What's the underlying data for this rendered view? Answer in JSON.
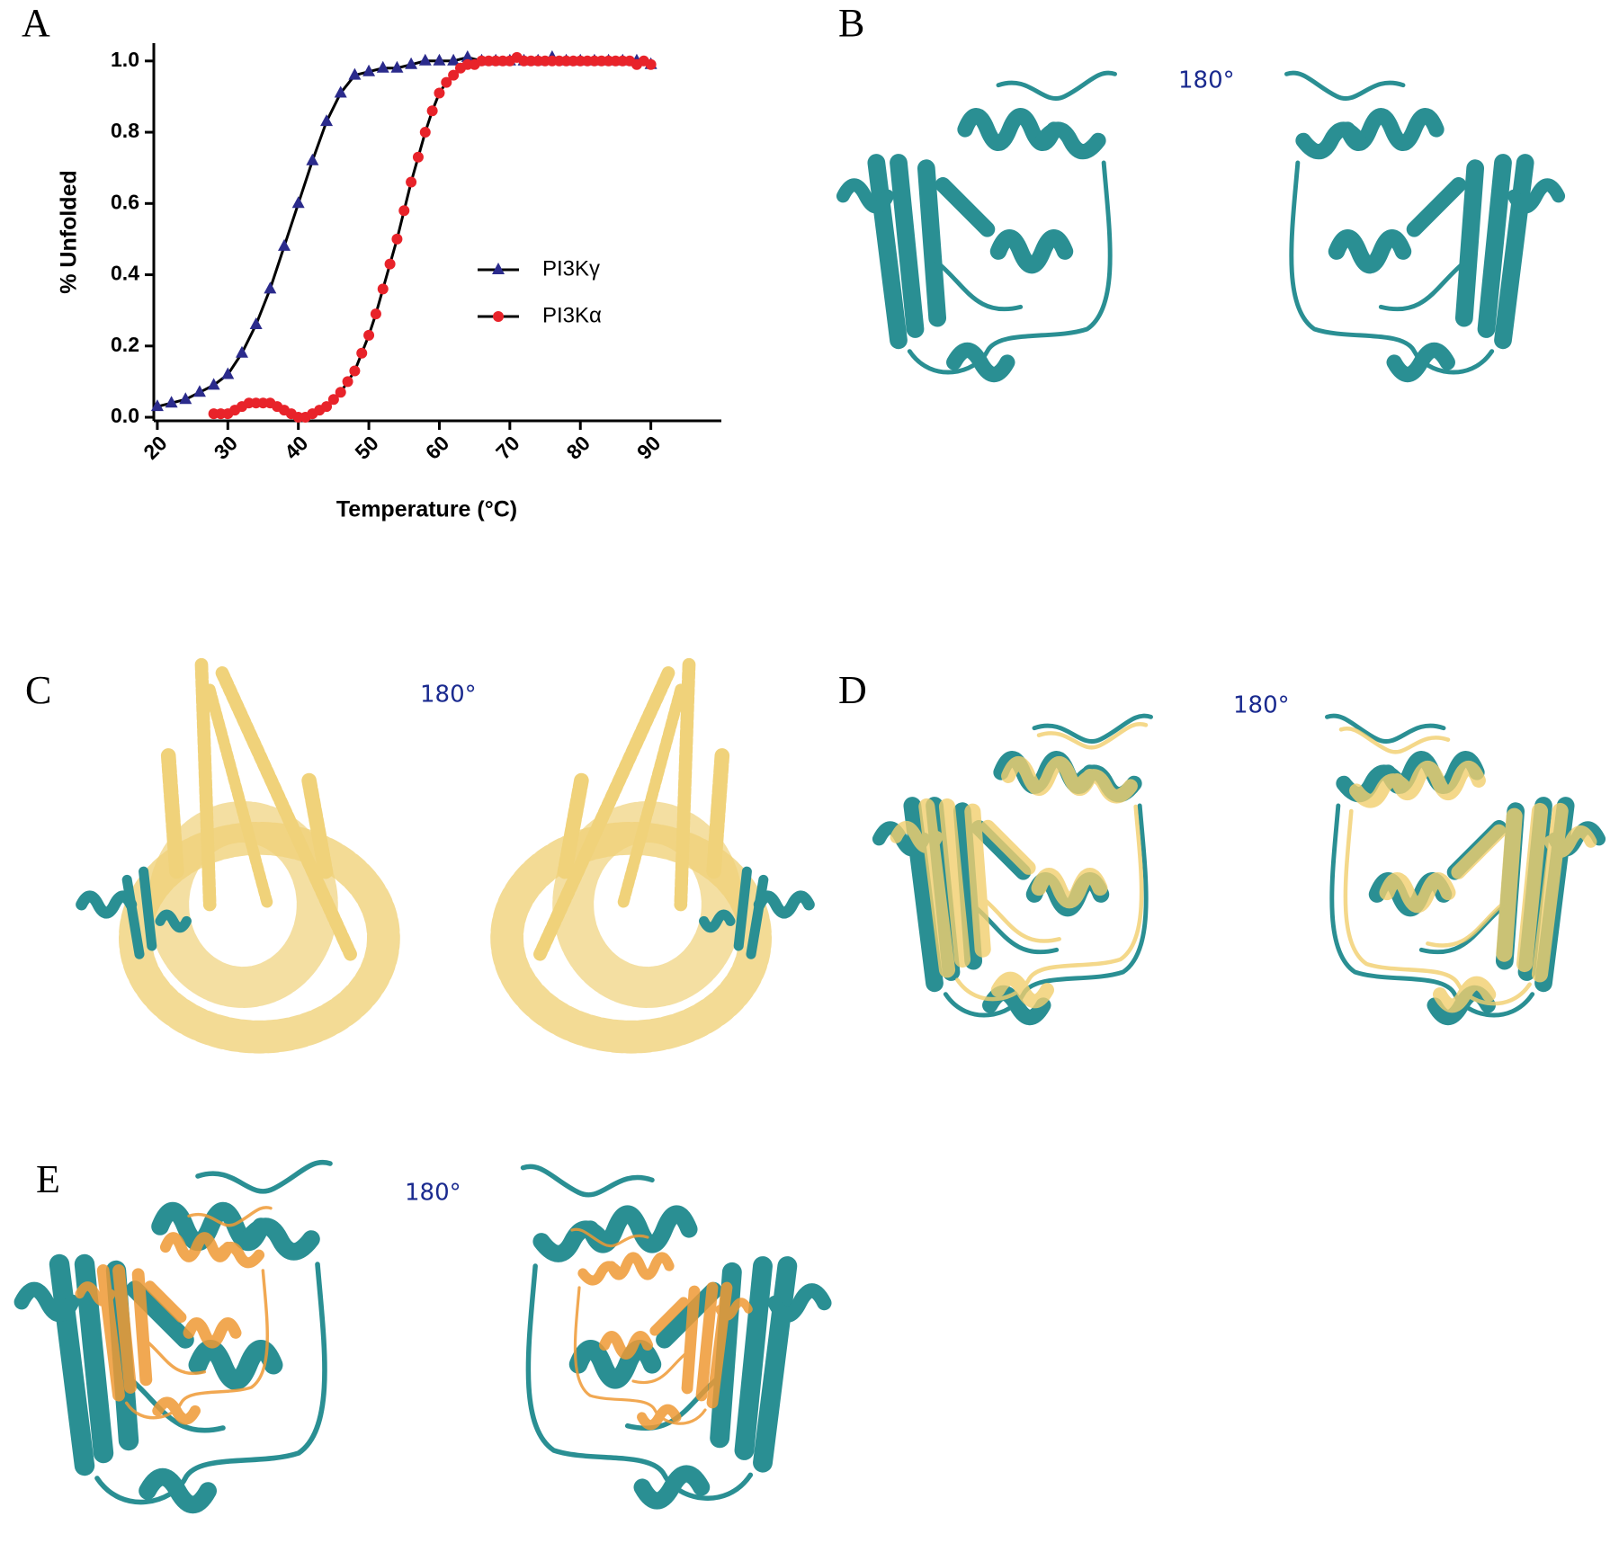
{
  "chart_data": {
    "type": "line",
    "x_label": "Temperature (°C)",
    "y_label": "% Unfolded",
    "xlim": [
      19.5,
      100
    ],
    "xticks": [
      20,
      30,
      40,
      50,
      60,
      70,
      80,
      90
    ],
    "ylim": [
      -0.01,
      1.05
    ],
    "yticks": [
      {
        "value": 0,
        "label": "0.0"
      },
      0.2,
      0.4,
      0.6,
      0.8,
      {
        "value": 1,
        "label": "1.0"
      }
    ],
    "legend": "right-center",
    "line_color": "#000000",
    "series": [
      {
        "name": "PI3Kγ",
        "color": "#2b2b8c",
        "marker": "triangle",
        "x": [
          20,
          22,
          24,
          26,
          28,
          30,
          32,
          34,
          36,
          38,
          40,
          42,
          44,
          46,
          48,
          50,
          52,
          54,
          56,
          58,
          60,
          62,
          64,
          66,
          68,
          70,
          72,
          74,
          76,
          78,
          80,
          82,
          84,
          86,
          88,
          90
        ],
        "values": [
          0.03,
          0.04,
          0.05,
          0.07,
          0.09,
          0.12,
          0.18,
          0.26,
          0.36,
          0.48,
          0.6,
          0.72,
          0.83,
          0.91,
          0.96,
          0.97,
          0.98,
          0.98,
          0.99,
          1.0,
          1.0,
          1.0,
          1.01,
          1.0,
          1.0,
          1.0,
          1.0,
          1.0,
          1.01,
          1.0,
          1.0,
          1.0,
          1.0,
          1.0,
          1.0,
          0.99
        ]
      },
      {
        "name": "PI3Kα",
        "color": "#e8232a",
        "marker": "circle",
        "x": [
          28,
          29,
          30,
          31,
          32,
          33,
          34,
          35,
          36,
          37,
          38,
          39,
          40,
          41,
          42,
          43,
          44,
          45,
          46,
          47,
          48,
          49,
          50,
          51,
          52,
          53,
          54,
          55,
          56,
          57,
          58,
          59,
          60,
          61,
          62,
          63,
          64,
          65,
          66,
          67,
          68,
          69,
          70,
          71,
          72,
          73,
          74,
          75,
          76,
          77,
          78,
          79,
          80,
          81,
          82,
          83,
          84,
          85,
          86,
          87,
          88,
          89,
          90
        ],
        "values": [
          0.01,
          0.01,
          0.01,
          0.02,
          0.03,
          0.04,
          0.04,
          0.04,
          0.04,
          0.03,
          0.02,
          0.01,
          0.0,
          0.0,
          0.01,
          0.02,
          0.03,
          0.05,
          0.07,
          0.1,
          0.13,
          0.18,
          0.23,
          0.29,
          0.36,
          0.43,
          0.5,
          0.58,
          0.66,
          0.73,
          0.8,
          0.86,
          0.91,
          0.94,
          0.96,
          0.98,
          0.99,
          0.99,
          1.0,
          1.0,
          1.0,
          1.0,
          1.0,
          1.01,
          1.0,
          1.0,
          1.0,
          1.0,
          1.0,
          1.0,
          1.0,
          1.0,
          1.0,
          1.0,
          1.0,
          1.0,
          1.0,
          1.0,
          1.0,
          1.0,
          0.99,
          1.0,
          0.99
        ]
      }
    ]
  },
  "panels": [
    {
      "label": "A"
    },
    {
      "label": "B",
      "rotation": "180°"
    },
    {
      "label": "C",
      "rotation": "180°"
    },
    {
      "label": "D",
      "rotation": "180°"
    },
    {
      "label": "E",
      "rotation": "180°"
    }
  ]
}
